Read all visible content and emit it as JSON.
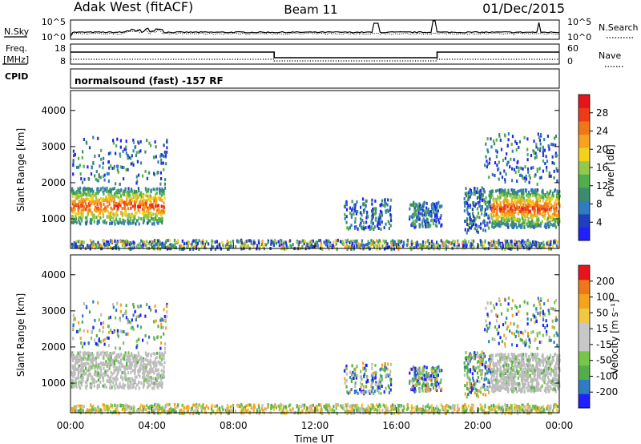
{
  "header": {
    "station": "Adak West (fitACF)",
    "beam": "Beam 11",
    "date": "01/Dec/2015"
  },
  "strips": {
    "nsky_label": "N.Sky",
    "nsky_ticks": [
      "10^5",
      "10^0"
    ],
    "nsearch_label": "N.Search",
    "nsearch_ticks": [
      "10^5",
      "10^0"
    ],
    "freq_label_line1": "Freq.",
    "freq_label_line2": "[MHz]",
    "freq_ticks": [
      "18",
      "8"
    ],
    "nave_label": "Nave",
    "nave_ticks": [
      "60",
      "0"
    ],
    "cpid_label": "CPID",
    "cpid_text": "normalsound (fast) -157 RF"
  },
  "colors": {
    "power_scale": [
      "#2020ff",
      "#1f3fbf",
      "#2e7dc0",
      "#3b8c6d",
      "#52ad4b",
      "#92c94a",
      "#f2d21c",
      "#f5a21c",
      "#f07718",
      "#ee3a16",
      "#e8141b"
    ],
    "velocity_scale": [
      "#e8141b",
      "#f07718",
      "#f5a21c",
      "#f2c840",
      "#c8c8c8",
      "#c8c8c8",
      "#76c64a",
      "#52ad4b",
      "#2e7dc0",
      "#2020ff"
    ],
    "ground_scatter": "#bdbdbd"
  },
  "chart_data": [
    {
      "type": "heatmap",
      "name": "power",
      "ylabel": "Slant Range [km]",
      "yticks": [
        "1000",
        "2000",
        "3000",
        "4000"
      ],
      "ylim": [
        180,
        4550
      ],
      "xlim": [
        "00:00",
        "24:00"
      ],
      "colorbar": {
        "label": "Power [dB]",
        "ticks": [
          "4",
          "8",
          "12",
          "16",
          "20",
          "24",
          "28"
        ],
        "range": [
          0,
          32
        ]
      },
      "scatter_regions": [
        {
          "t_start": 0.0,
          "t_end": 4.6,
          "r_min": 900,
          "r_max": 1900,
          "level": "high"
        },
        {
          "t_start": 0.0,
          "t_end": 4.7,
          "r_min": 2000,
          "r_max": 3300,
          "level": "low"
        },
        {
          "t_start": 13.4,
          "t_end": 15.7,
          "r_min": 750,
          "r_max": 1600,
          "level": "low"
        },
        {
          "t_start": 16.6,
          "t_end": 18.2,
          "r_min": 800,
          "r_max": 1500,
          "level": "low"
        },
        {
          "t_start": 19.3,
          "t_end": 20.6,
          "r_min": 650,
          "r_max": 1900,
          "level": "low"
        },
        {
          "t_start": 20.6,
          "t_end": 24.0,
          "r_min": 800,
          "r_max": 1850,
          "level": "high"
        },
        {
          "t_start": 20.3,
          "t_end": 23.9,
          "r_min": 2000,
          "r_max": 3400,
          "level": "low"
        },
        {
          "t_start": 0.0,
          "t_end": 24.0,
          "r_min": 200,
          "r_max": 450,
          "level": "near"
        }
      ]
    },
    {
      "type": "heatmap",
      "name": "velocity",
      "ylabel": "Slant Range [km]",
      "yticks": [
        "1000",
        "2000",
        "3000",
        "4000"
      ],
      "ylim": [
        180,
        4550
      ],
      "xlim": [
        "00:00",
        "24:00"
      ],
      "colorbar": {
        "label": "Velocity [m s⁻¹]",
        "ticks": [
          "200",
          "100",
          "50",
          "15",
          "-15",
          "-50",
          "-100",
          "-200"
        ],
        "range": [
          -250,
          250
        ]
      }
    }
  ],
  "xaxis": {
    "ticks": [
      "00:00",
      "04:00",
      "08:00",
      "12:00",
      "16:00",
      "20:00",
      "00:00"
    ],
    "label": "Time UT"
  }
}
